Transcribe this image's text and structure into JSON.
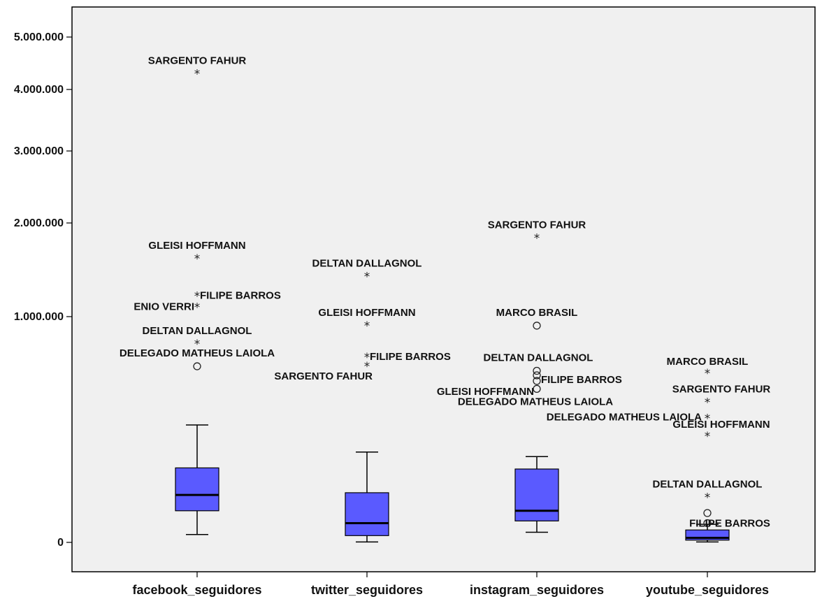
{
  "chart_data": {
    "type": "boxplot",
    "colors": {
      "box_fill": "#5a5aff",
      "plot_background": "#f0f0f0"
    },
    "y_ticks": [
      {
        "value": 0,
        "label": "0"
      },
      {
        "value": 1000000,
        "label": "1.000.000"
      },
      {
        "value": 2000000,
        "label": "2.000.000"
      },
      {
        "value": 3000000,
        "label": "3.000.000"
      },
      {
        "value": 4000000,
        "label": "4.000.000"
      },
      {
        "value": 5000000,
        "label": "5.000.000"
      }
    ],
    "categories": [
      "facebook_seguidores",
      "twitter_seguidores",
      "instagram_seguidores",
      "youtube_seguidores"
    ],
    "boxes": [
      {
        "category": "facebook_seguidores",
        "whisker_low": 35000,
        "q1": 140000,
        "median": 210000,
        "q3": 330000,
        "whisker_high": 520000,
        "outliers": [
          {
            "value": 4300000,
            "marker": "star",
            "label": "SARGENTO FAHUR"
          },
          {
            "value": 1620000,
            "marker": "star",
            "label": "GLEISI HOFFMANN"
          },
          {
            "value": 1220000,
            "marker": "star",
            "label": "FILIPE BARROS"
          },
          {
            "value": 1100000,
            "marker": "star",
            "label": "ENIO VERRI"
          },
          {
            "value": 880000,
            "marker": "star",
            "label": "DELTAN DALLAGNOL"
          },
          {
            "value": 780000,
            "marker": "circle",
            "label": "DELEGADO MATHEUS LAIOLA"
          }
        ]
      },
      {
        "category": "twitter_seguidores",
        "whisker_low": 2000,
        "q1": 30000,
        "median": 85000,
        "q3": 220000,
        "whisker_high": 400000,
        "outliers": [
          {
            "value": 1430000,
            "marker": "star",
            "label": "DELTAN DALLAGNOL"
          },
          {
            "value": 960000,
            "marker": "star",
            "label": "GLEISI HOFFMANN"
          },
          {
            "value": 820000,
            "marker": "star",
            "label": "FILIPE BARROS"
          },
          {
            "value": 780000,
            "marker": "star",
            "label": "SARGENTO FAHUR"
          }
        ]
      },
      {
        "category": "instagram_seguidores",
        "whisker_low": 45000,
        "q1": 95000,
        "median": 140000,
        "q3": 325000,
        "whisker_high": 380000,
        "outliers": [
          {
            "value": 1840000,
            "marker": "star",
            "label": "SARGENTO FAHUR"
          },
          {
            "value": 960000,
            "marker": "circle",
            "label": "MARCO BRASIL"
          },
          {
            "value": 760000,
            "marker": "circle",
            "label": "DELTAN DALLAGNOL"
          },
          {
            "value": 740000,
            "marker": "circle",
            "label": "FILIPE BARROS"
          },
          {
            "value": 715000,
            "marker": "circle",
            "label": "GLEISI HOFFMANN"
          },
          {
            "value": 680000,
            "marker": "circle",
            "label": "DELEGADO MATHEUS LAIOLA"
          }
        ]
      },
      {
        "category": "youtube_seguidores",
        "whisker_low": 2000,
        "q1": 10000,
        "median": 20000,
        "q3": 55000,
        "whisker_high": 80000,
        "outliers": [
          {
            "value": 750000,
            "marker": "star",
            "label": "MARCO BRASIL"
          },
          {
            "value": 620000,
            "marker": "star",
            "label": "SARGENTO FAHUR"
          },
          {
            "value": 550000,
            "marker": "star",
            "label": "DELEGADO MATHEUS LAIOLA"
          },
          {
            "value": 470000,
            "marker": "star",
            "label": "GLEISI HOFFMANN"
          },
          {
            "value": 200000,
            "marker": "star",
            "label": "DELTAN DALLAGNOL"
          },
          {
            "value": 130000,
            "marker": "circle",
            "label": ""
          },
          {
            "value": 85000,
            "marker": "circle",
            "label": "FILIPE BARROS"
          }
        ]
      }
    ]
  }
}
